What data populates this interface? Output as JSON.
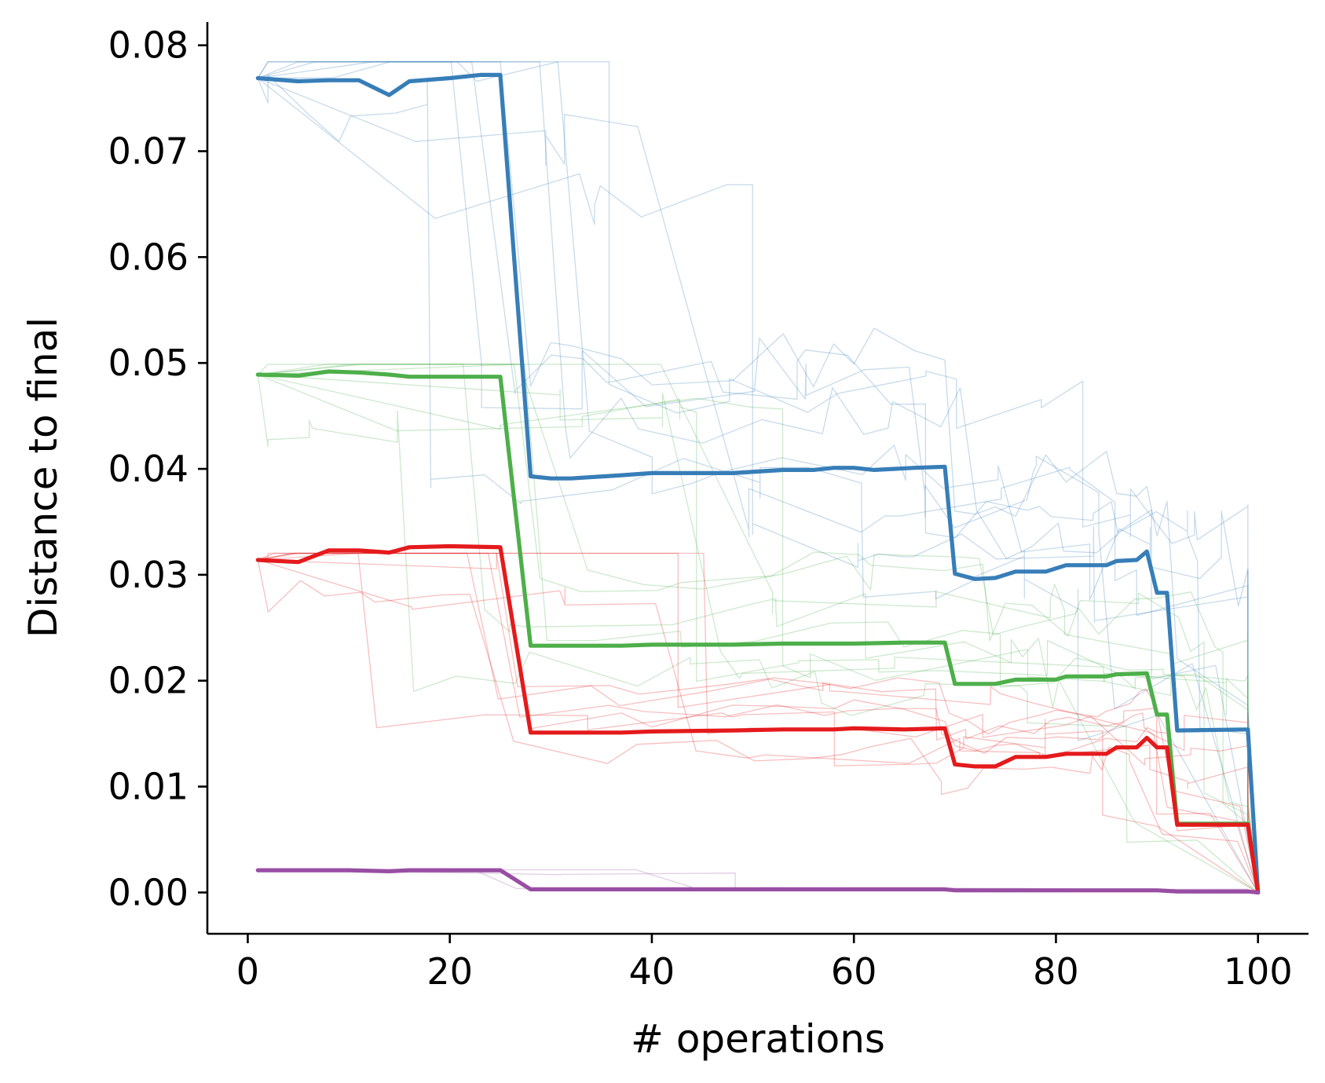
{
  "chart_data": {
    "type": "line",
    "title": "",
    "xlabel": "# operations",
    "ylabel": "Distance to final",
    "xlim": [
      -4,
      105
    ],
    "ylim": [
      -0.0039,
      0.0822
    ],
    "xticks": [
      0,
      20,
      40,
      60,
      80,
      100
    ],
    "xtick_labels": [
      "0",
      "20",
      "40",
      "60",
      "80",
      "100"
    ],
    "yticks": [
      0.0,
      0.01,
      0.02,
      0.03,
      0.04,
      0.05,
      0.06,
      0.07,
      0.08
    ],
    "ytick_labels": [
      "0.00",
      "0.01",
      "0.02",
      "0.03",
      "0.04",
      "0.05",
      "0.06",
      "0.07",
      "0.08"
    ],
    "grid": false,
    "legend": "none",
    "series": [
      {
        "color": "#377eb8",
        "x": [
          1,
          5,
          8,
          11,
          14,
          16,
          20,
          23,
          25,
          28,
          30,
          32,
          37,
          40,
          48,
          53,
          56,
          58,
          60,
          62,
          66,
          69,
          70,
          72,
          74,
          76,
          79,
          81,
          85,
          86,
          88,
          89,
          90,
          91,
          92,
          99,
          100
        ],
        "y": [
          0.0769,
          0.0766,
          0.0767,
          0.0767,
          0.0753,
          0.0766,
          0.0769,
          0.0772,
          0.0772,
          0.0393,
          0.0391,
          0.0391,
          0.0394,
          0.0396,
          0.0396,
          0.0399,
          0.0399,
          0.0401,
          0.0401,
          0.0399,
          0.0401,
          0.0402,
          0.0301,
          0.0296,
          0.0297,
          0.0303,
          0.0303,
          0.0309,
          0.0309,
          0.0313,
          0.0314,
          0.0322,
          0.0283,
          0.0283,
          0.0153,
          0.0154,
          0.0
        ]
      },
      {
        "color": "#4daf4a",
        "x": [
          1,
          5,
          8,
          11,
          14,
          16,
          20,
          25,
          28,
          30,
          37,
          40,
          48,
          53,
          58,
          60,
          65,
          69,
          70,
          74,
          76,
          80,
          81,
          85,
          86,
          89,
          90,
          91,
          92,
          99,
          100
        ],
        "y": [
          0.0489,
          0.0488,
          0.0492,
          0.0491,
          0.0489,
          0.0487,
          0.0487,
          0.0487,
          0.0233,
          0.0233,
          0.0233,
          0.0234,
          0.0234,
          0.0235,
          0.0235,
          0.0235,
          0.0236,
          0.0236,
          0.0197,
          0.0197,
          0.0201,
          0.0201,
          0.0204,
          0.0204,
          0.0206,
          0.0207,
          0.0168,
          0.0168,
          0.0065,
          0.0065,
          0.0
        ]
      },
      {
        "color": "#e41a1c",
        "x": [
          1,
          5,
          8,
          11,
          14,
          16,
          20,
          25,
          28,
          37,
          40,
          48,
          53,
          58,
          60,
          65,
          69,
          70,
          72,
          74,
          76,
          79,
          81,
          85,
          86,
          88,
          89,
          90,
          91,
          92,
          99,
          100
        ],
        "y": [
          0.0314,
          0.0312,
          0.0323,
          0.0323,
          0.0321,
          0.0326,
          0.0327,
          0.0326,
          0.0151,
          0.0151,
          0.0152,
          0.0153,
          0.0154,
          0.0154,
          0.0155,
          0.0154,
          0.0155,
          0.0121,
          0.0119,
          0.0119,
          0.0128,
          0.0128,
          0.0131,
          0.0131,
          0.0137,
          0.0137,
          0.0146,
          0.0137,
          0.0137,
          0.0064,
          0.0064,
          0.0
        ]
      },
      {
        "color": "#984ea3",
        "x": [
          1,
          10,
          14,
          16,
          20,
          25,
          28,
          40,
          60,
          69,
          70,
          80,
          90,
          92,
          99,
          100
        ],
        "y": [
          0.0021,
          0.0021,
          0.002,
          0.0021,
          0.0021,
          0.0021,
          0.0003,
          0.0003,
          0.0003,
          0.0003,
          0.0002,
          0.0002,
          0.0002,
          0.0001,
          0.0001,
          0.0
        ]
      }
    ]
  }
}
